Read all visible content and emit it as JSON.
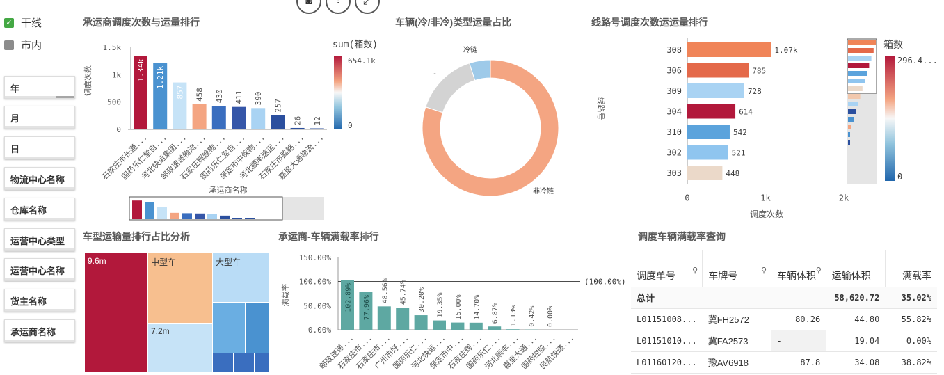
{
  "checks": [
    {
      "label": "干线",
      "checked": true
    },
    {
      "label": "市内",
      "checked": false
    }
  ],
  "filters": [
    "年",
    "月",
    "日",
    "物流中心名称",
    "仓库名称",
    "运营中心类型",
    "运营中心名称",
    "货主名称",
    "承运商名称"
  ],
  "toolbar": {
    "camera_icon": "camera-icon",
    "settings_icon": "sliders-icon",
    "expand_icon": "expand-icon"
  },
  "titles": {
    "carrier_rank": "承运商调度次数与运量排行",
    "vehicle_share": "车辆(冷/非冷)类型运量占比",
    "route_rank": "线路号调度次数运运量排行",
    "vehicle_type": "车型运输量排行占比分析",
    "carrier_load": "承运商-车辆满载率排行",
    "load_query": "调度车辆满载率查询"
  },
  "colors": {
    "red": "#b2183b",
    "orange": "#f4a582",
    "blue_dark": "#2b4f9e",
    "blue": "#4a92d0",
    "blue_light": "#b9dcf6",
    "teal": "#5ea8a2"
  },
  "chart_data": [
    {
      "type": "bar",
      "ylabel": "调度次数",
      "xlabel": "承运商名称",
      "categories": [
        "石家庄市长通...",
        "国药乐仁堂自...",
        "河北快运集团...",
        "邮政速递物流...",
        "石家庄辉煌物...",
        "国药乐仁堂自...",
        "保定市中保物...",
        "河北顺丰速运...",
        "石家庄市路路...",
        "嘉里大通物流..."
      ],
      "values": [
        1340,
        1210,
        857,
        458,
        430,
        411,
        390,
        257,
        26,
        12
      ],
      "data_labels": [
        "1.34k",
        "1.21k",
        "857",
        "458",
        "430",
        "411",
        "390",
        "257",
        "26",
        "12"
      ],
      "bar_colors": [
        "#b2183b",
        "#4a92d0",
        "#c6e3f7",
        "#f4a582",
        "#3a6ebf",
        "#3556a8",
        "#a9d3f3",
        "#2b4f9e",
        "#2b4f9e",
        "#2b4f9e"
      ],
      "yticks": [
        "1.5k",
        "1k",
        "500",
        "0"
      ],
      "ylim": [
        0,
        1500
      ],
      "legend": {
        "title": "sum(箱数)",
        "max": "654.1k",
        "min": "0"
      }
    },
    {
      "type": "pie",
      "categories": [
        "非冷链",
        "-",
        "冷链"
      ],
      "values": [
        80,
        15,
        5
      ],
      "colors": [
        "#f4a582",
        "#d3d3d3",
        "#9ecae9"
      ]
    },
    {
      "type": "bar",
      "orientation": "horizontal",
      "ylabel": "线路号",
      "xlabel": "调度次数",
      "categories": [
        "308",
        "306",
        "309",
        "304",
        "310",
        "302",
        "303"
      ],
      "values": [
        1070,
        785,
        728,
        614,
        542,
        521,
        448
      ],
      "data_labels": [
        "1.07k",
        "785",
        "728",
        "614",
        "542",
        "521",
        "448"
      ],
      "bar_colors": [
        "#f08458",
        "#e4694a",
        "#a9d3f3",
        "#b2183b",
        "#5ba3dc",
        "#8fc5ef",
        "#ebd9c9"
      ],
      "xticks": [
        "0",
        "1k",
        "2k"
      ],
      "xlim": [
        0,
        2000
      ],
      "legend": {
        "title": "箱数",
        "max": "296.4...",
        "min": "0"
      }
    },
    {
      "type": "heatmap",
      "cells": [
        {
          "label": "9.6m",
          "name": ""
        },
        {
          "label": "",
          "name": "中型车"
        },
        {
          "label": "7.2m",
          "name": ""
        },
        {
          "label": "",
          "name": "大型车"
        }
      ]
    },
    {
      "type": "bar",
      "ylabel": "满载率",
      "categories": [
        "邮政速递...",
        "石家庄市...",
        "石家庄市...",
        "广州市好...",
        "国药乐仁...",
        "河北快运...",
        "保定市中...",
        "石家庄辉...",
        "国药乐仁...",
        "河北顺丰...",
        "嘉里大通...",
        "国药控股...",
        "民航快递..."
      ],
      "values": [
        102.89,
        77.96,
        48.56,
        45.74,
        30.2,
        19.35,
        15.0,
        14.7,
        6.87,
        1.13,
        0.42,
        0.0,
        0
      ],
      "data_labels": [
        "102.89%",
        "77.96%",
        "48.56%",
        "45.74%",
        "30.20%",
        "19.35%",
        "15.00%",
        "14.70%",
        "6.87%",
        "1.13%",
        "0.42%",
        "0.00%",
        ""
      ],
      "yticks": [
        "150.00%",
        "100.00%",
        "50.00%",
        "0.00%"
      ],
      "ylim": [
        0,
        150
      ],
      "reference_line": {
        "value": 100,
        "label": "(100.00%)"
      }
    }
  ],
  "table": {
    "headers": [
      "调度单号",
      "车牌号",
      "车辆体积",
      "运输体积",
      "满载率"
    ],
    "total": {
      "label": "总计",
      "transport": "58,620.72",
      "rate": "35.02%"
    },
    "rows": [
      {
        "id": "L01151008...",
        "plate": "冀FH2572",
        "volume": "80.26",
        "transport": "44.80",
        "rate": "55.82%"
      },
      {
        "id": "L01151010...",
        "plate": "冀FA2573",
        "volume": "-",
        "transport": "19.04",
        "rate": "0.00%"
      },
      {
        "id": "L01160120...",
        "plate": "豫AV6918",
        "volume": "87.8",
        "transport": "34.08",
        "rate": "38.82%"
      }
    ]
  }
}
